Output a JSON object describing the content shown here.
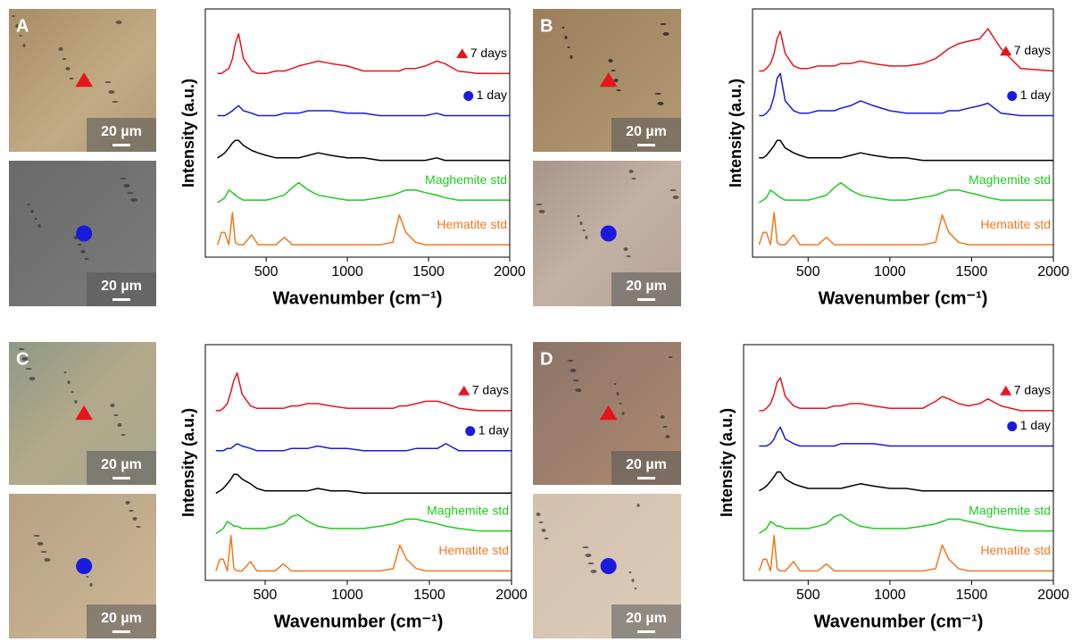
{
  "panels": [
    {
      "label": "A",
      "scale_bars": [
        "20 µm",
        "20 µm"
      ]
    },
    {
      "label": "B",
      "scale_bars": [
        "20 µm",
        "20 µm"
      ]
    },
    {
      "label": "C",
      "scale_bars": [
        "20 µm",
        "20 µm"
      ]
    },
    {
      "label": "D",
      "scale_bars": [
        "20 µm",
        "20 µm"
      ]
    }
  ],
  "chart_data": [
    {
      "type": "line",
      "xlabel": "Wavenumber (cm⁻¹)",
      "ylabel": "Intensity (a.u.)",
      "x": [
        200,
        225,
        245,
        270,
        292,
        310,
        330,
        360,
        411,
        450,
        500,
        560,
        612,
        660,
        700,
        760,
        820,
        900,
        1000,
        1100,
        1200,
        1280,
        1320,
        1360,
        1420,
        1480,
        1550,
        1600,
        1680,
        1800,
        2000
      ],
      "xlim": [
        125,
        2000
      ],
      "xticks": [
        500,
        1000,
        1500,
        2000
      ],
      "ylim": [
        0,
        100
      ],
      "series": [
        {
          "name": "7 days",
          "color": "#e8141c",
          "marker": "triangle",
          "values": [
            74,
            74,
            75,
            76,
            80,
            86,
            90,
            80,
            75,
            74,
            74,
            75,
            75,
            76,
            77,
            78,
            79,
            78,
            77,
            75,
            75,
            75,
            75,
            76,
            76,
            77,
            79,
            78,
            75,
            74,
            74
          ]
        },
        {
          "name": "1 day",
          "color": "#1a1adf",
          "marker": "circle",
          "values": [
            57,
            57,
            57,
            58,
            59,
            60,
            61,
            59,
            58,
            57,
            57,
            57,
            58,
            58,
            58,
            59,
            59,
            59,
            58,
            58,
            57,
            57,
            57,
            57,
            57,
            57,
            58,
            57,
            57,
            57,
            57
          ]
        },
        {
          "color": "#000000",
          "values": [
            40,
            41,
            42,
            44,
            46,
            47,
            47,
            45,
            43,
            42,
            41,
            40,
            40,
            40,
            40,
            41,
            42,
            41,
            40,
            40,
            39,
            39,
            39,
            39,
            39,
            39,
            40,
            39,
            39,
            39,
            39
          ]
        },
        {
          "name": "Maghemite std",
          "color": "#1ecc1e",
          "values": [
            22,
            23,
            24,
            27,
            26,
            25,
            24,
            23,
            23,
            23,
            23,
            24,
            25,
            28,
            30,
            27,
            25,
            24,
            23,
            23,
            24,
            25,
            26,
            27,
            27,
            26,
            25,
            24,
            23,
            23,
            23
          ]
        },
        {
          "name": "Hematite std",
          "color": "#f07820",
          "values": [
            5,
            10,
            10,
            5,
            18,
            6,
            5,
            5,
            9,
            5,
            5,
            5,
            8,
            5,
            5,
            5,
            5,
            5,
            5,
            5,
            5,
            6,
            17,
            10,
            6,
            5,
            5,
            5,
            5,
            5,
            5
          ]
        }
      ]
    },
    {
      "type": "line",
      "xlabel": "Wavenumber (cm⁻¹)",
      "ylabel": "Intensity (a.u.)",
      "x": [
        200,
        225,
        245,
        270,
        292,
        310,
        330,
        360,
        411,
        450,
        500,
        560,
        612,
        660,
        700,
        760,
        820,
        900,
        1000,
        1100,
        1200,
        1280,
        1320,
        1360,
        1420,
        1480,
        1550,
        1600,
        1680,
        1800,
        2000
      ],
      "xlim": [
        160,
        2000
      ],
      "xticks": [
        500,
        1000,
        1500,
        2000
      ],
      "ylim": [
        0,
        100
      ],
      "series": [
        {
          "name": "7 days",
          "color": "#e8141c",
          "marker": "triangle",
          "values": [
            75,
            75,
            76,
            78,
            82,
            88,
            91,
            82,
            77,
            76,
            76,
            77,
            77,
            77,
            78,
            78,
            79,
            78,
            77,
            77,
            78,
            80,
            82,
            84,
            86,
            87,
            88,
            92,
            84,
            76,
            75
          ]
        },
        {
          "name": "1 day",
          "color": "#1a1adf",
          "marker": "circle",
          "values": [
            57,
            57,
            58,
            60,
            65,
            72,
            74,
            63,
            59,
            58,
            58,
            59,
            59,
            59,
            60,
            61,
            63,
            61,
            59,
            58,
            58,
            58,
            58,
            59,
            59,
            60,
            61,
            62,
            58,
            57,
            57
          ]
        },
        {
          "color": "#000000",
          "values": [
            40,
            40,
            41,
            43,
            45,
            47,
            47,
            44,
            42,
            41,
            40,
            40,
            40,
            40,
            40,
            41,
            42,
            41,
            40,
            40,
            39,
            39,
            39,
            39,
            39,
            39,
            39,
            39,
            39,
            39,
            39
          ]
        },
        {
          "name": "Maghemite std",
          "color": "#1ecc1e",
          "values": [
            22,
            23,
            24,
            27,
            26,
            25,
            24,
            23,
            23,
            23,
            23,
            24,
            25,
            28,
            30,
            27,
            25,
            24,
            23,
            23,
            24,
            25,
            26,
            27,
            27,
            26,
            25,
            24,
            23,
            23,
            23
          ]
        },
        {
          "name": "Hematite std",
          "color": "#f07820",
          "values": [
            5,
            10,
            10,
            5,
            18,
            6,
            5,
            5,
            9,
            5,
            5,
            5,
            8,
            5,
            5,
            5,
            5,
            5,
            5,
            5,
            5,
            6,
            17,
            10,
            6,
            5,
            5,
            5,
            5,
            5,
            5
          ]
        }
      ]
    },
    {
      "type": "line",
      "xlabel": "Wavenumber (cm⁻¹)",
      "ylabel": "Intensity (a.u.)",
      "x": [
        200,
        225,
        245,
        270,
        292,
        310,
        330,
        360,
        411,
        450,
        500,
        560,
        612,
        660,
        700,
        760,
        820,
        900,
        1000,
        1100,
        1200,
        1280,
        1320,
        1360,
        1420,
        1480,
        1550,
        1600,
        1680,
        1800,
        2000
      ],
      "xlim": [
        136,
        2000
      ],
      "xticks": [
        500,
        1000,
        1500,
        2000
      ],
      "ylim": [
        0,
        100
      ],
      "series": [
        {
          "name": "7 days",
          "color": "#e8141c",
          "marker": "triangle",
          "values": [
            72,
            72,
            73,
            75,
            80,
            85,
            88,
            79,
            74,
            73,
            73,
            73,
            73,
            74,
            74,
            75,
            75,
            74,
            73,
            73,
            73,
            73,
            74,
            74,
            75,
            76,
            76,
            75,
            73,
            72,
            72
          ]
        },
        {
          "name": "1 day",
          "color": "#1a1adf",
          "marker": "circle",
          "values": [
            55,
            55,
            55,
            56,
            56,
            57,
            58,
            57,
            56,
            55,
            55,
            55,
            55,
            56,
            56,
            56,
            57,
            56,
            56,
            55,
            55,
            55,
            55,
            55,
            56,
            56,
            56,
            58,
            55,
            55,
            55
          ]
        },
        {
          "color": "#000000",
          "values": [
            37,
            38,
            39,
            41,
            43,
            45,
            45,
            43,
            41,
            39,
            38,
            38,
            38,
            38,
            38,
            38,
            39,
            38,
            38,
            37,
            37,
            37,
            37,
            37,
            37,
            37,
            37,
            37,
            37,
            37,
            37
          ]
        },
        {
          "name": "Maghemite std",
          "color": "#1ecc1e",
          "values": [
            20,
            21,
            22,
            25,
            24,
            23,
            23,
            22,
            22,
            22,
            22,
            23,
            24,
            27,
            28,
            25,
            23,
            22,
            22,
            22,
            23,
            24,
            25,
            26,
            26,
            25,
            24,
            23,
            22,
            21,
            21
          ]
        },
        {
          "name": "Hematite std",
          "color": "#f07820",
          "values": [
            4,
            9,
            9,
            4,
            19,
            5,
            4,
            4,
            8,
            4,
            4,
            4,
            7,
            4,
            4,
            4,
            4,
            4,
            4,
            4,
            4,
            5,
            15,
            9,
            5,
            4,
            4,
            4,
            4,
            4,
            4
          ]
        }
      ]
    },
    {
      "type": "line",
      "xlabel": "Wavenumber (cm⁻¹)",
      "ylabel": "Intensity (a.u.)",
      "x": [
        200,
        225,
        245,
        270,
        292,
        310,
        330,
        360,
        411,
        450,
        500,
        560,
        612,
        660,
        700,
        760,
        820,
        900,
        1000,
        1100,
        1200,
        1280,
        1320,
        1360,
        1420,
        1480,
        1550,
        1600,
        1680,
        1800,
        2000
      ],
      "xlim": [
        105,
        2000
      ],
      "xticks": [
        500,
        1000,
        1500,
        2000
      ],
      "ylim": [
        0,
        100
      ],
      "series": [
        {
          "name": "7 days",
          "color": "#e8141c",
          "marker": "triangle",
          "values": [
            72,
            72,
            73,
            75,
            79,
            84,
            86,
            78,
            74,
            73,
            73,
            73,
            73,
            74,
            74,
            75,
            75,
            74,
            73,
            73,
            73,
            76,
            78,
            77,
            75,
            74,
            75,
            77,
            74,
            72,
            72
          ]
        },
        {
          "name": "1 day",
          "color": "#1a1adf",
          "marker": "circle",
          "values": [
            57,
            57,
            57,
            58,
            60,
            63,
            65,
            60,
            58,
            57,
            57,
            57,
            57,
            57,
            58,
            58,
            58,
            58,
            57,
            57,
            57,
            57,
            57,
            57,
            57,
            57,
            57,
            57,
            57,
            57,
            57
          ]
        },
        {
          "color": "#000000",
          "values": [
            38,
            39,
            40,
            42,
            44,
            46,
            46,
            43,
            41,
            40,
            39,
            39,
            39,
            39,
            39,
            40,
            41,
            40,
            39,
            39,
            38,
            38,
            38,
            38,
            38,
            38,
            38,
            38,
            38,
            38,
            38
          ]
        },
        {
          "name": "Maghemite std",
          "color": "#1ecc1e",
          "values": [
            20,
            21,
            22,
            25,
            24,
            23,
            23,
            22,
            22,
            22,
            22,
            23,
            24,
            27,
            28,
            25,
            23,
            22,
            22,
            22,
            23,
            24,
            25,
            26,
            26,
            25,
            24,
            23,
            22,
            21,
            21
          ]
        },
        {
          "name": "Hematite std",
          "color": "#f07820",
          "values": [
            4,
            9,
            9,
            4,
            19,
            5,
            4,
            4,
            8,
            4,
            4,
            4,
            7,
            4,
            4,
            4,
            4,
            4,
            4,
            4,
            4,
            5,
            15,
            9,
            5,
            4,
            4,
            4,
            4,
            4,
            4
          ]
        }
      ]
    }
  ]
}
